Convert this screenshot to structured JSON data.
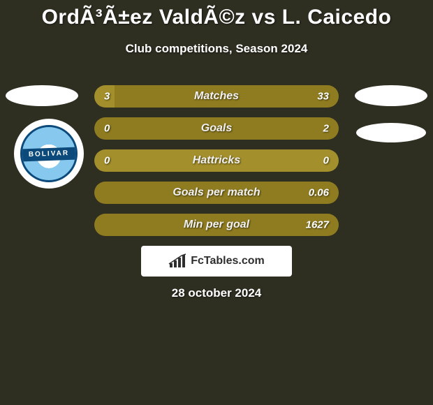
{
  "title": "OrdÃ³Ã±ez ValdÃ©z vs L. Caicedo",
  "subtitle": "Club competitions, Season 2024",
  "date": "28 october 2024",
  "branding": "FcTables.com",
  "bolivar_label": "BOLIVAR",
  "colors": {
    "background": "#2e2e21",
    "bar_left": "#a38f2b",
    "bar_right": "#8f7c20",
    "full_bar": "#a38f2b",
    "text": "#ffffff",
    "crest_bg": "#ffffff",
    "bolivar_sky": "#87c8ee",
    "bolivar_border": "#0b4a7a"
  },
  "rows": [
    {
      "label": "Matches",
      "left": "3",
      "right": "33",
      "left_pct": 8.3,
      "right_pct": 91.7
    },
    {
      "label": "Goals",
      "left": "0",
      "right": "2",
      "left_pct": 0,
      "right_pct": 100
    },
    {
      "label": "Hattricks",
      "left": "0",
      "right": "0",
      "left_pct": 100,
      "right_pct": 0
    },
    {
      "label": "Goals per match",
      "left": "",
      "right": "0.06",
      "left_pct": 0,
      "right_pct": 100
    },
    {
      "label": "Min per goal",
      "left": "",
      "right": "1627",
      "left_pct": 0,
      "right_pct": 100
    }
  ]
}
